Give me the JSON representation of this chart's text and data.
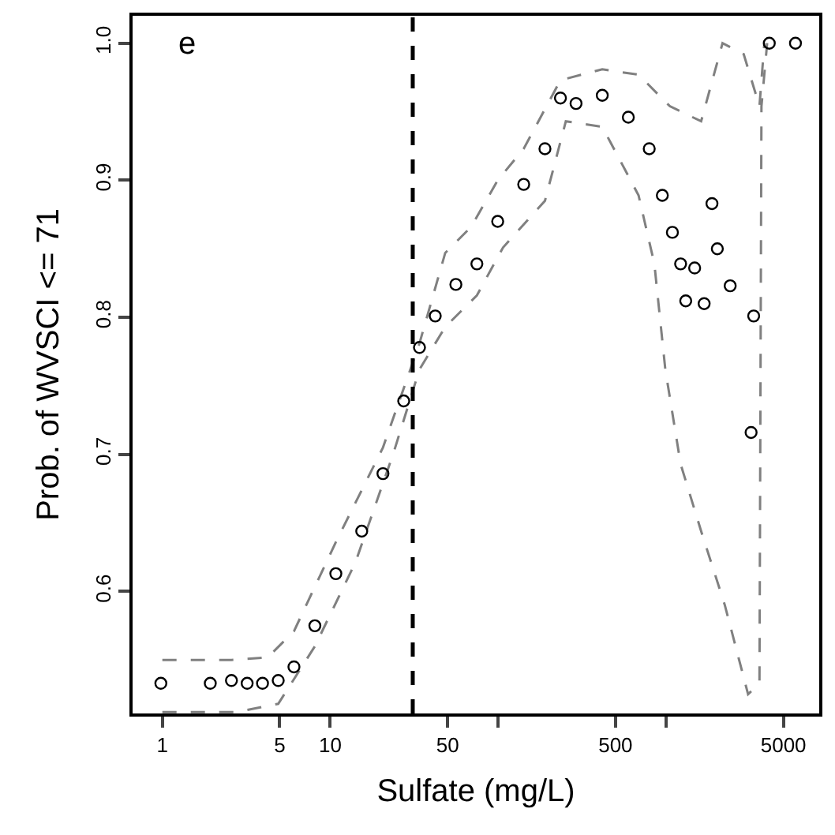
{
  "chart_data": {
    "type": "scatter",
    "xlabel": "Sulfate (mg/L)",
    "ylabel": "Prob. of WVSCI <= 71",
    "annotations": [
      "e"
    ],
    "log": "x",
    "xlim": [
      0.665,
      8170
    ],
    "ylim": [
      0.511,
      1.02
    ],
    "xticks": [
      1,
      5,
      10,
      50,
      {
        "value": 100,
        "label": null
      },
      500,
      {
        "value": 1000,
        "label": null
      },
      5000
    ],
    "yticks": [
      0.6,
      0.7,
      0.8,
      0.9,
      {
        "value": 1,
        "label": "1.0"
      }
    ],
    "ref_lines": [
      {
        "axis": "x",
        "value": 31,
        "color": "#000000",
        "line_style": "dashed"
      }
    ],
    "series": [
      {
        "type": "line",
        "color": "#808080",
        "line_style": "dashed",
        "marker": "none",
        "x": [
          1.0,
          2.58,
          4.25,
          6.08,
          10.8,
          20.6,
          34,
          48.4,
          69,
          99.4,
          142,
          235,
          417,
          686,
          1054,
          1618,
          2170,
          2900,
          3600,
          3850
        ],
        "values": [
          0.55,
          0.55,
          0.552,
          0.571,
          0.636,
          0.705,
          0.781,
          0.847,
          0.866,
          0.9,
          0.923,
          0.973,
          0.981,
          0.977,
          0.954,
          0.943,
          1.0,
          0.992,
          0.954,
          1.0
        ]
      },
      {
        "type": "line",
        "color": "#808080",
        "line_style": "dashed",
        "marker": "none",
        "x": [
          1.0,
          2.77,
          4.9,
          8.1,
          14.1,
          23.8,
          34,
          48.4,
          74.7,
          107,
          190,
          253,
          417,
          686,
          852,
          990,
          1221,
          1618,
          2240,
          3080,
          3600,
          3700,
          4000
        ],
        "values": [
          0.512,
          0.512,
          0.518,
          0.56,
          0.621,
          0.701,
          0.762,
          0.793,
          0.816,
          0.851,
          0.885,
          0.943,
          0.939,
          0.889,
          0.839,
          0.762,
          0.693,
          0.644,
          0.59,
          0.525,
          0.533,
          0.954,
          1.0
        ]
      },
      {
        "color": "#000000",
        "marker": "circle",
        "x": [
          0.98,
          1.93,
          2.58,
          3.2,
          3.95,
          4.9,
          6.08,
          8.1,
          10.8,
          15.4,
          20.6,
          27.4,
          34,
          42.2,
          56,
          74.7,
          99.4,
          142,
          190,
          235,
          291,
          417,
          596,
          794,
          950,
          1091,
          1221,
          1310,
          1480,
          1686,
          1877,
          2020,
          2410,
          3210,
          3326,
          4120,
          5900
        ],
        "values": [
          0.533,
          0.533,
          0.535,
          0.533,
          0.533,
          0.535,
          0.545,
          0.575,
          0.613,
          0.644,
          0.686,
          0.739,
          0.778,
          0.801,
          0.824,
          0.839,
          0.87,
          0.897,
          0.923,
          0.96,
          0.956,
          0.962,
          0.946,
          0.923,
          0.889,
          0.862,
          0.839,
          0.812,
          0.836,
          0.81,
          0.883,
          0.85,
          0.823,
          0.716,
          0.801,
          1.0,
          1.0
        ]
      }
    ]
  }
}
